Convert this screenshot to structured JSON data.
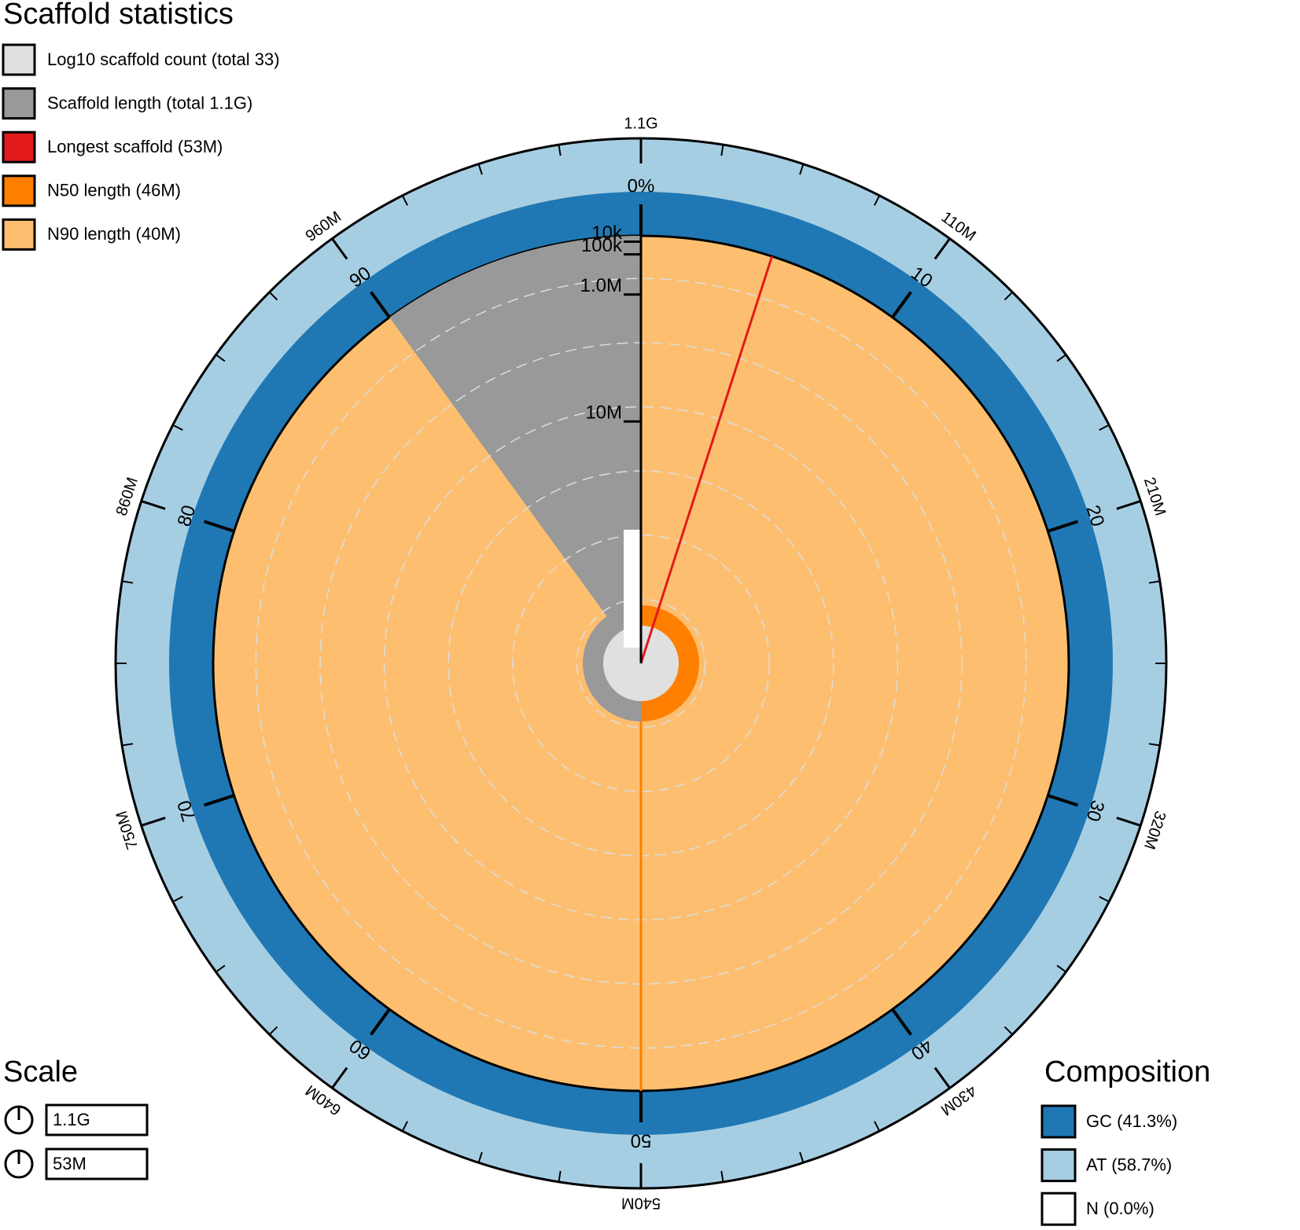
{
  "title": "Scaffold statistics",
  "legend": [
    {
      "label": "Log10 scaffold count (total 33)",
      "color": "#e0e0e0"
    },
    {
      "label": "Scaffold length (total 1.1G)",
      "color": "#999999"
    },
    {
      "label": "Longest scaffold (53M)",
      "color": "#e31a1c"
    },
    {
      "label": "N50 length (46M)",
      "color": "#ff7f00"
    },
    {
      "label": "N90 length (40M)",
      "color": "#fdbf6f"
    }
  ],
  "scale": {
    "title": "Scale",
    "items": [
      {
        "value": 1070000000,
        "label": "1.1G"
      },
      {
        "value": 53000000,
        "label": "53M"
      }
    ]
  },
  "composition": {
    "title": "Composition",
    "items": [
      {
        "label": "GC (41.3%)",
        "color": "#1f78b4"
      },
      {
        "label": "AT (58.7%)",
        "color": "#a6cee3"
      },
      {
        "label": "N (0.0%)",
        "color": "#ffffff"
      }
    ]
  },
  "chart_data": {
    "type": "snail",
    "percent_lim": [
      0,
      100
    ],
    "percent_ticks": [
      {
        "value": 0,
        "label": "0%"
      },
      10,
      20,
      30,
      40,
      50,
      60,
      70,
      80,
      90
    ],
    "length_ticks": [
      {
        "value": 107000000,
        "label": "110M"
      },
      {
        "value": 214000000,
        "label": "210M"
      },
      {
        "value": 321000000,
        "label": "320M"
      },
      {
        "value": 428000000,
        "label": "430M"
      },
      {
        "value": 535000000,
        "label": "540M"
      },
      {
        "value": 642000000,
        "label": "640M"
      },
      {
        "value": 749000000,
        "label": "750M"
      },
      {
        "value": 856000000,
        "label": "860M"
      },
      {
        "value": 963000000,
        "label": "960M"
      },
      {
        "value": 1070000000,
        "label": "1.1G"
      }
    ],
    "radial_ticks": [
      {
        "value": 10000,
        "label": "10k"
      },
      {
        "value": 100000,
        "label": "100k"
      },
      {
        "value": 1000000,
        "label": "1.0M"
      },
      {
        "value": 10000000,
        "label": "10M"
      }
    ]
  }
}
